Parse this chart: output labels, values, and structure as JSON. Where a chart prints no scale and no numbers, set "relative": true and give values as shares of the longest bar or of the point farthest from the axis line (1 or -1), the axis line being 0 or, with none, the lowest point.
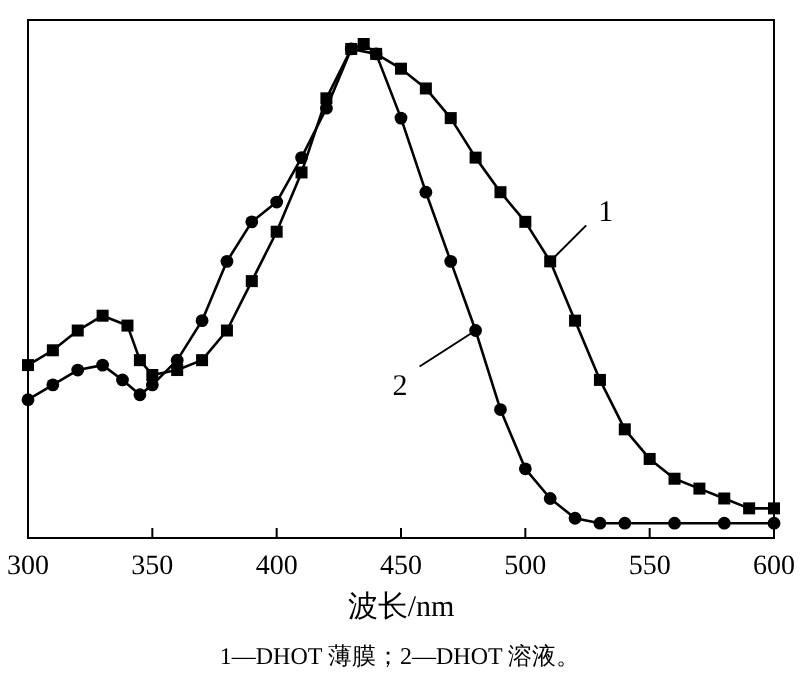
{
  "chart_data": {
    "type": "line",
    "relative": true,
    "xlabel": "波长/nm",
    "xlim": [
      300,
      600
    ],
    "xticks": [
      300,
      350,
      400,
      450,
      500,
      550,
      600
    ],
    "series": [
      {
        "color": "#000000",
        "marker": "square",
        "x": [
          300,
          310,
          320,
          330,
          340,
          345,
          350,
          360,
          370,
          380,
          390,
          400,
          410,
          420,
          430,
          435,
          440,
          450,
          460,
          470,
          480,
          490,
          500,
          510,
          520,
          530,
          540,
          550,
          560,
          570,
          580,
          590,
          600
        ],
        "values": [
          0.35,
          0.38,
          0.42,
          0.45,
          0.43,
          0.36,
          0.33,
          0.34,
          0.36,
          0.42,
          0.52,
          0.62,
          0.74,
          0.89,
          0.99,
          1,
          0.98,
          0.95,
          0.91,
          0.85,
          0.77,
          0.7,
          0.64,
          0.56,
          0.44,
          0.32,
          0.22,
          0.16,
          0.12,
          0.1,
          0.08,
          0.06,
          0.06
        ]
      },
      {
        "color": "#000000",
        "marker": "circle",
        "x": [
          300,
          310,
          320,
          330,
          338,
          345,
          350,
          360,
          370,
          380,
          390,
          400,
          410,
          420,
          430,
          440,
          450,
          460,
          470,
          480,
          490,
          500,
          510,
          520,
          530,
          540,
          560,
          580,
          600
        ],
        "values": [
          0.28,
          0.31,
          0.34,
          0.35,
          0.32,
          0.29,
          0.31,
          0.36,
          0.44,
          0.56,
          0.64,
          0.68,
          0.77,
          0.87,
          0.99,
          0.98,
          0.85,
          0.7,
          0.56,
          0.42,
          0.26,
          0.14,
          0.08,
          0.04,
          0.03,
          0.03,
          0.03,
          0.03,
          0.03
        ]
      }
    ],
    "annotations": [
      {
        "text": "1",
        "x": 510,
        "y": 0.56
      },
      {
        "text": "2",
        "x": 480,
        "y": 0.42
      },
      "1—DHOT 薄膜；2—DHOT 溶液。"
    ]
  }
}
